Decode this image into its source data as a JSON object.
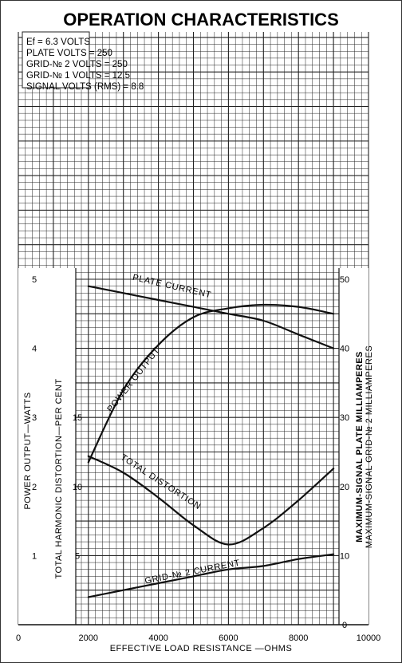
{
  "chart_data": {
    "type": "line",
    "title": "OPERATION CHARACTERISTICS",
    "conditions": [
      "Ef = 6.3 VOLTS",
      "PLATE VOLTS = 250",
      "GRID-№ 2 VOLTS = 250",
      "GRID-№ 1 VOLTS = 12.5",
      "SIGNAL VOLTS (RMS) = 8.8"
    ],
    "xlabel": "EFFECTIVE LOAD RESISTANCE —OHMS",
    "xlim": [
      0,
      10000
    ],
    "x_ticks": [
      "0",
      "2000",
      "4000",
      "6000",
      "8000",
      "10000"
    ],
    "axes": {
      "power": {
        "label": "POWER OUTPUT—WATTS",
        "ylim": [
          0,
          5
        ],
        "ticks": [
          "1",
          "2",
          "3",
          "4",
          "5"
        ]
      },
      "distortion": {
        "label": "TOTAL HARMONIC DISTORTION—PER CENT",
        "ylim": [
          0,
          25
        ],
        "ticks": [
          "5",
          "10",
          "15"
        ]
      },
      "current": {
        "label_1": "MAXIMUM-SIGNAL PLATE MILLIAMPERES",
        "label_2": "MAXIMUM-SIGNAL GRID-№ 2 MILLIAMPERES",
        "ylim": [
          0,
          50
        ],
        "ticks": [
          "0",
          "10",
          "20",
          "30",
          "40",
          "50"
        ]
      }
    },
    "x": [
      2000,
      3000,
      4000,
      5000,
      6000,
      7000,
      8000,
      9000
    ],
    "series": [
      {
        "name": "PLATE CURRENT",
        "axis": "current",
        "values": [
          49,
          48,
          47,
          46,
          45,
          44,
          42,
          40
        ]
      },
      {
        "name": "POWER OUTPUT",
        "axis": "power",
        "values": [
          2.35,
          3.4,
          4.05,
          4.45,
          4.58,
          4.63,
          4.6,
          4.5
        ]
      },
      {
        "name": "TOTAL DISTORTION",
        "axis": "distortion",
        "values": [
          12.2,
          11,
          9.2,
          7.2,
          5.8,
          7,
          9,
          11.3
        ]
      },
      {
        "name": "GRID-№ 2 CURRENT",
        "axis": "current",
        "values": [
          4,
          5,
          6,
          7,
          8,
          8.5,
          9.5,
          10.2
        ]
      }
    ]
  }
}
